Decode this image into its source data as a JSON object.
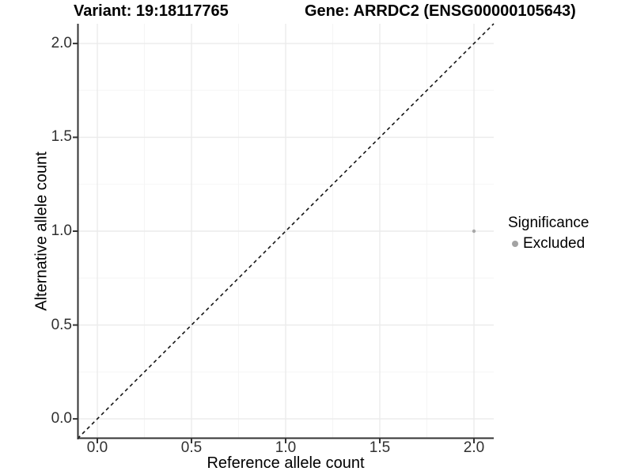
{
  "figure": {
    "title_left": "Variant: 19:18117765",
    "title_right": "Gene: ARRDC2 (ENSG00000105643)"
  },
  "chart_data": {
    "type": "scatter",
    "title": "Variant: 19:18117765  /  Gene: ARRDC2 (ENSG00000105643)",
    "xlabel": "Reference allele count",
    "ylabel": "Alternative allele count",
    "xlim": [
      -0.105,
      2.105
    ],
    "ylim": [
      -0.105,
      2.105
    ],
    "xticks": {
      "values": [
        0,
        0.5,
        1,
        1.5,
        2
      ],
      "labels": [
        "0.0",
        "0.5",
        "1.0",
        "1.5",
        "2.0"
      ]
    },
    "yticks": {
      "values": [
        0,
        0.5,
        1,
        1.5,
        2
      ],
      "labels": [
        "0.0",
        "0.5",
        "1.0",
        "1.5",
        "2.0"
      ]
    },
    "minor_x": [
      0.25,
      0.75,
      1.25,
      1.75
    ],
    "minor_y": [
      0.25,
      0.75,
      1.25,
      1.75
    ],
    "grid": "major+minor",
    "points": [
      {
        "x": 2,
        "y": 1,
        "series": "Excluded"
      }
    ],
    "identity_line": {
      "style": "dashed",
      "from": [
        -0.105,
        -0.105
      ],
      "to": [
        2.105,
        2.105
      ]
    },
    "legend": {
      "title": "Significance",
      "position": "right",
      "items": [
        {
          "label": "Excluded"
        }
      ]
    }
  },
  "colors": {
    "background": "#FFFFFF",
    "point": "#A8A8A8",
    "legend_point": "#A3A3A3",
    "grid_major": "#EBEBEB",
    "grid_minor": "#F5F5F5",
    "axis_line": "#333333",
    "tick_mark": "#333333",
    "tick_text": "#303030",
    "title_text": "#000000",
    "dashed_line": "#151515"
  }
}
